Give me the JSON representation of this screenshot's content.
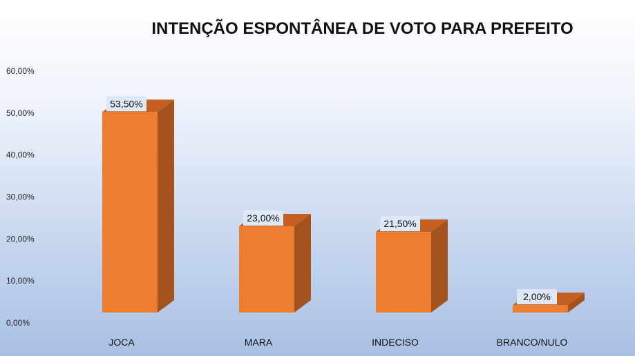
{
  "chart_data": {
    "type": "bar",
    "title": "INTENÇÃO ESPONTÂNEA DE VOTO PARA PREFEITO",
    "categories": [
      "JOCA",
      "MARA",
      "INDECISO",
      "BRANCO/NULO"
    ],
    "values": [
      53.5,
      23.0,
      21.5,
      2.0
    ],
    "data_labels": [
      "53,50%",
      "23,00%",
      "21,50%",
      "2,00%"
    ],
    "ylim": [
      0,
      60
    ],
    "yticks": [
      0,
      10,
      20,
      30,
      40,
      50,
      60
    ],
    "ytick_labels": [
      "0,00%",
      "10,00%",
      "20,00%",
      "30,00%",
      "40,00%",
      "50,00%",
      "60,00%"
    ],
    "xlabel": "",
    "ylabel": "",
    "grid": false,
    "legend": "none",
    "style": "3d-bar"
  },
  "colors": {
    "bar_front": "#ed7d31",
    "bar_side": "#a4521e",
    "bar_top": "#c45f21",
    "label_box": "#dfe8f6"
  }
}
